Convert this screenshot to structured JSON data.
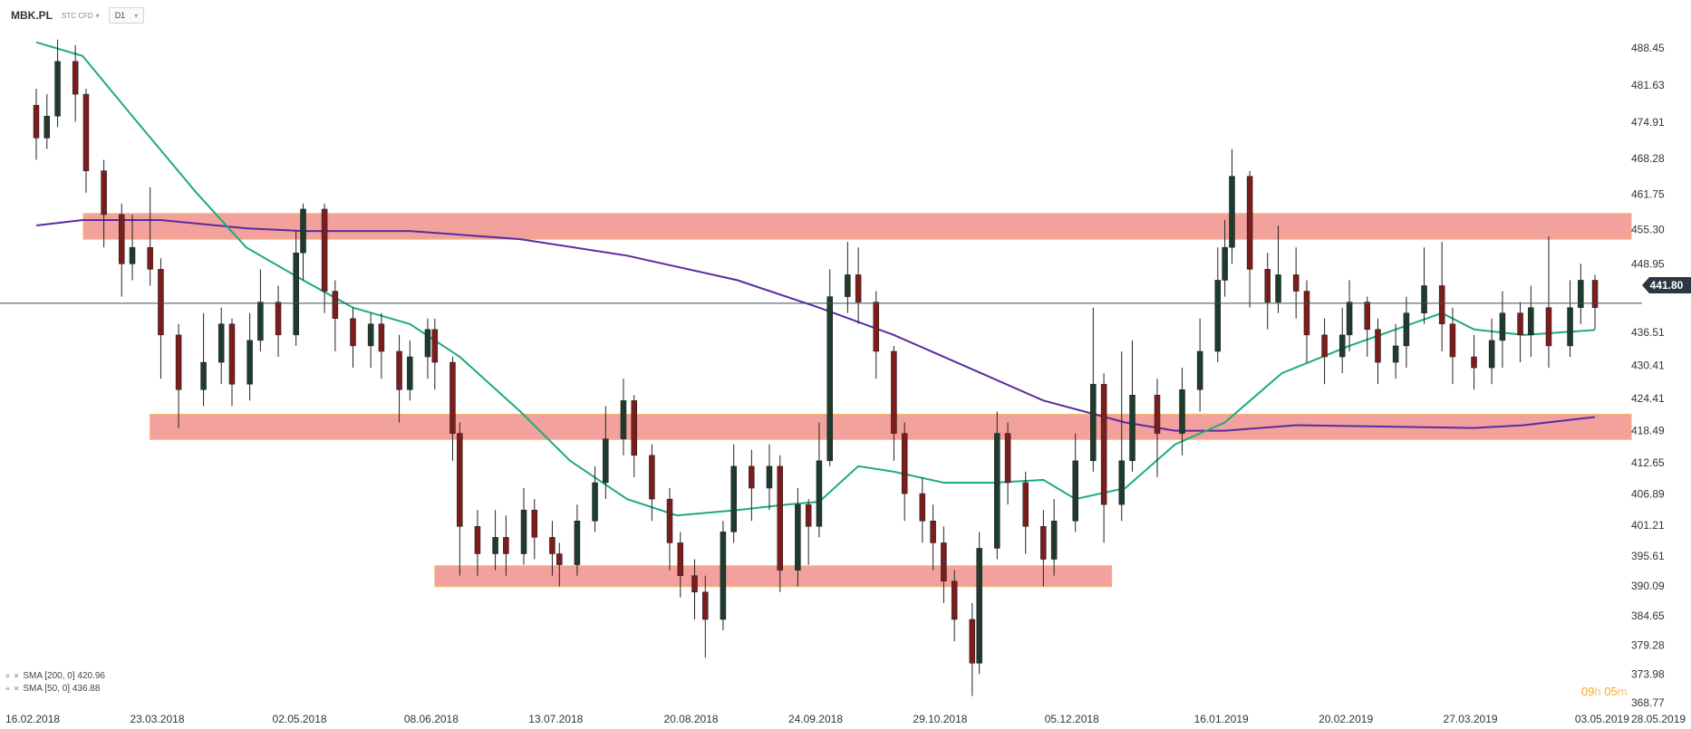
{
  "toolbar": {
    "symbol": "MBK.PL",
    "instrument_type": "STC CFD",
    "timeframe": "D1"
  },
  "current_price": "441.80",
  "timer": {
    "h": "09",
    "h_unit": "h",
    "m": "05",
    "m_unit": "m"
  },
  "legend": [
    {
      "label": "SMA  [200,  0]  420.96"
    },
    {
      "label": "SMA  [50,  0]  436.88"
    }
  ],
  "colors": {
    "up_candle": "#1f3b2e",
    "down_candle": "#7b1d1d",
    "sma50": "#1dab7d",
    "sma200": "#5b2aa0",
    "zone_fill": "#f2a19d",
    "zone_stroke": "#f2b56b",
    "price_line": "#3b4a56"
  },
  "chart_data": {
    "type": "candlestick",
    "y_ticks": [
      "488.45",
      "481.63",
      "474.91",
      "468.28",
      "461.75",
      "455.30",
      "448.95",
      "436.51",
      "430.41",
      "424.41",
      "418.49",
      "412.65",
      "406.89",
      "401.21",
      "395.61",
      "390.09",
      "384.65",
      "379.28",
      "373.98",
      "368.77"
    ],
    "x_ticks": [
      "16.02.2018",
      "23.03.2018",
      "02.05.2018",
      "08.06.2018",
      "13.07.2018",
      "20.08.2018",
      "24.09.2018",
      "29.10.2018",
      "05.12.2018",
      "16.01.2019",
      "20.02.2019",
      "27.03.2019",
      "03.05.2019",
      "28.05.2019"
    ],
    "ylim": [
      368.77,
      488.45
    ],
    "current_price": 441.8,
    "zones": [
      {
        "from": "16.02.2018",
        "to": "30.04.2019",
        "low": 453.5,
        "high": 458.2
      },
      {
        "from": "20.03.2018",
        "to": "30.04.2019",
        "low": 416.9,
        "high": 421.5
      },
      {
        "from": "08.06.2018",
        "to": "05.12.2018",
        "low": 390.0,
        "high": 393.8
      }
    ],
    "sma50": [
      [
        "16.02.2018",
        489.5
      ],
      [
        "01.03.2018",
        487.0
      ],
      [
        "15.03.2018",
        476.0
      ],
      [
        "02.04.2018",
        462.0
      ],
      [
        "16.04.2018",
        452.0
      ],
      [
        "02.05.2018",
        446.0
      ],
      [
        "16.05.2018",
        441.0
      ],
      [
        "01.06.2018",
        438.0
      ],
      [
        "15.06.2018",
        432.0
      ],
      [
        "02.07.2018",
        422.0
      ],
      [
        "16.07.2018",
        413.0
      ],
      [
        "01.08.2018",
        406.0
      ],
      [
        "15.08.2018",
        403.0
      ],
      [
        "01.09.2018",
        404.0
      ],
      [
        "15.09.2018",
        405.0
      ],
      [
        "24.09.2018",
        405.5
      ],
      [
        "05.10.2018",
        412.0
      ],
      [
        "15.10.2018",
        411.0
      ],
      [
        "29.10.2018",
        409.0
      ],
      [
        "12.11.2018",
        409.0
      ],
      [
        "26.11.2018",
        409.5
      ],
      [
        "05.12.2018",
        406.0
      ],
      [
        "19.12.2018",
        408.0
      ],
      [
        "02.01.2019",
        416.0
      ],
      [
        "16.01.2019",
        420.0
      ],
      [
        "01.02.2019",
        429.0
      ],
      [
        "20.02.2019",
        434.0
      ],
      [
        "05.03.2019",
        437.0
      ],
      [
        "18.03.2019",
        440.0
      ],
      [
        "27.03.2019",
        437.0
      ],
      [
        "10.04.2019",
        436.0
      ],
      [
        "30.04.2019",
        436.9
      ]
    ],
    "sma200": [
      [
        "16.02.2018",
        456.0
      ],
      [
        "01.03.2018",
        457.0
      ],
      [
        "23.03.2018",
        457.0
      ],
      [
        "16.04.2018",
        455.5
      ],
      [
        "02.05.2018",
        455.0
      ],
      [
        "01.06.2018",
        455.0
      ],
      [
        "02.07.2018",
        453.5
      ],
      [
        "01.08.2018",
        450.5
      ],
      [
        "01.09.2018",
        446.0
      ],
      [
        "24.09.2018",
        441.0
      ],
      [
        "15.10.2018",
        436.0
      ],
      [
        "05.11.2018",
        430.0
      ],
      [
        "26.11.2018",
        424.0
      ],
      [
        "19.12.2018",
        420.0
      ],
      [
        "02.01.2019",
        418.5
      ],
      [
        "16.01.2019",
        418.5
      ],
      [
        "05.02.2019",
        419.5
      ],
      [
        "27.03.2019",
        419.0
      ],
      [
        "10.04.2019",
        419.5
      ],
      [
        "30.04.2019",
        421.0
      ]
    ],
    "candles": [
      [
        "16.02.2018",
        478,
        472,
        481,
        468
      ],
      [
        "19.02.2018",
        472,
        476,
        480,
        470
      ],
      [
        "22.02.2018",
        476,
        486,
        490,
        474
      ],
      [
        "27.02.2018",
        486,
        480,
        489,
        475
      ],
      [
        "02.03.2018",
        480,
        466,
        481,
        462
      ],
      [
        "07.03.2018",
        466,
        458,
        468,
        452
      ],
      [
        "12.03.2018",
        458,
        449,
        460,
        443
      ],
      [
        "15.03.2018",
        449,
        452,
        458,
        446
      ],
      [
        "20.03.2018",
        452,
        448,
        463,
        445
      ],
      [
        "23.03.2018",
        448,
        436,
        450,
        428
      ],
      [
        "28.03.2018",
        436,
        426,
        438,
        419
      ],
      [
        "04.04.2018",
        426,
        431,
        440,
        423
      ],
      [
        "09.04.2018",
        431,
        438,
        441,
        427
      ],
      [
        "12.04.2018",
        438,
        427,
        439,
        423
      ],
      [
        "17.04.2018",
        427,
        435,
        440,
        424
      ],
      [
        "20.04.2018",
        435,
        442,
        448,
        433
      ],
      [
        "25.04.2018",
        442,
        436,
        445,
        432
      ],
      [
        "30.04.2018",
        436,
        451,
        455,
        434
      ],
      [
        "02.05.2018",
        451,
        459,
        460,
        446
      ],
      [
        "08.05.2018",
        459,
        444,
        460,
        440
      ],
      [
        "11.05.2018",
        444,
        439,
        446,
        433
      ],
      [
        "16.05.2018",
        439,
        434,
        441,
        430
      ],
      [
        "21.05.2018",
        434,
        438,
        440,
        430
      ],
      [
        "24.05.2018",
        438,
        433,
        440,
        428
      ],
      [
        "29.05.2018",
        433,
        426,
        436,
        420
      ],
      [
        "01.06.2018",
        426,
        432,
        435,
        424
      ],
      [
        "06.06.2018",
        432,
        437,
        439,
        428
      ],
      [
        "08.06.2018",
        437,
        431,
        439,
        426
      ],
      [
        "13.06.2018",
        431,
        418,
        432,
        413
      ],
      [
        "15.06.2018",
        418,
        401,
        420,
        392
      ],
      [
        "20.06.2018",
        401,
        396,
        404,
        392
      ],
      [
        "25.06.2018",
        396,
        399,
        404,
        393
      ],
      [
        "28.06.2018",
        399,
        396,
        403,
        392
      ],
      [
        "03.07.2018",
        396,
        404,
        408,
        394
      ],
      [
        "06.07.2018",
        404,
        399,
        406,
        395
      ],
      [
        "11.07.2018",
        399,
        396,
        402,
        392
      ],
      [
        "13.07.2018",
        396,
        394,
        398,
        390
      ],
      [
        "18.07.2018",
        394,
        402,
        405,
        392
      ],
      [
        "23.07.2018",
        402,
        409,
        412,
        400
      ],
      [
        "26.07.2018",
        409,
        417,
        423,
        406
      ],
      [
        "31.07.2018",
        417,
        424,
        428,
        414
      ],
      [
        "03.08.2018",
        424,
        414,
        425,
        410
      ],
      [
        "08.08.2018",
        414,
        406,
        416,
        402
      ],
      [
        "13.08.2018",
        406,
        398,
        408,
        393
      ],
      [
        "16.08.2018",
        398,
        392,
        400,
        388
      ],
      [
        "20.08.2018",
        392,
        389,
        395,
        384
      ],
      [
        "23.08.2018",
        389,
        384,
        392,
        377
      ],
      [
        "28.08.2018",
        384,
        400,
        402,
        382
      ],
      [
        "31.08.2018",
        400,
        412,
        416,
        398
      ],
      [
        "05.09.2018",
        412,
        408,
        415,
        402
      ],
      [
        "10.09.2018",
        408,
        412,
        416,
        404
      ],
      [
        "13.09.2018",
        412,
        393,
        414,
        389
      ],
      [
        "18.09.2018",
        393,
        405,
        408,
        390
      ],
      [
        "21.09.2018",
        405,
        401,
        406,
        394
      ],
      [
        "24.09.2018",
        401,
        413,
        420,
        399
      ],
      [
        "27.09.2018",
        413,
        443,
        448,
        412
      ],
      [
        "02.10.2018",
        443,
        447,
        453,
        440
      ],
      [
        "05.10.2018",
        447,
        442,
        452,
        438
      ],
      [
        "10.10.2018",
        442,
        433,
        444,
        428
      ],
      [
        "15.10.2018",
        433,
        418,
        434,
        413
      ],
      [
        "18.10.2018",
        418,
        407,
        420,
        402
      ],
      [
        "23.10.2018",
        407,
        402,
        410,
        398
      ],
      [
        "26.10.2018",
        402,
        398,
        405,
        393
      ],
      [
        "29.10.2018",
        398,
        391,
        401,
        387
      ],
      [
        "01.11.2018",
        391,
        384,
        393,
        380
      ],
      [
        "06.11.2018",
        384,
        376,
        387,
        370
      ],
      [
        "08.11.2018",
        376,
        397,
        400,
        374
      ],
      [
        "13.11.2018",
        397,
        418,
        422,
        395
      ],
      [
        "16.11.2018",
        418,
        409,
        420,
        405
      ],
      [
        "21.11.2018",
        409,
        401,
        411,
        396
      ],
      [
        "26.11.2018",
        401,
        395,
        404,
        390
      ],
      [
        "29.11.2018",
        395,
        402,
        406,
        392
      ],
      [
        "05.12.2018",
        402,
        413,
        418,
        400
      ],
      [
        "10.12.2018",
        413,
        427,
        441,
        411
      ],
      [
        "13.12.2018",
        427,
        405,
        429,
        398
      ],
      [
        "18.12.2018",
        405,
        413,
        433,
        402
      ],
      [
        "21.12.2018",
        413,
        425,
        435,
        411
      ],
      [
        "28.12.2018",
        425,
        418,
        428,
        410
      ],
      [
        "04.01.2019",
        418,
        426,
        430,
        414
      ],
      [
        "09.01.2019",
        426,
        433,
        439,
        422
      ],
      [
        "14.01.2019",
        433,
        446,
        452,
        431
      ],
      [
        "16.01.2019",
        446,
        452,
        457,
        443
      ],
      [
        "18.01.2019",
        452,
        465,
        470,
        449
      ],
      [
        "23.01.2019",
        465,
        448,
        466,
        441
      ],
      [
        "28.01.2019",
        448,
        442,
        451,
        437
      ],
      [
        "31.01.2019",
        442,
        447,
        456,
        440
      ],
      [
        "05.02.2019",
        447,
        444,
        452,
        439
      ],
      [
        "08.02.2019",
        444,
        436,
        446,
        431
      ],
      [
        "13.02.2019",
        436,
        432,
        439,
        427
      ],
      [
        "18.02.2019",
        432,
        436,
        441,
        429
      ],
      [
        "20.02.2019",
        436,
        442,
        446,
        433
      ],
      [
        "25.02.2019",
        442,
        437,
        443,
        432
      ],
      [
        "28.02.2019",
        437,
        431,
        439,
        427
      ],
      [
        "05.03.2019",
        431,
        434,
        438,
        428
      ],
      [
        "08.03.2019",
        434,
        440,
        443,
        430
      ],
      [
        "13.03.2019",
        440,
        445,
        452,
        438
      ],
      [
        "18.03.2019",
        445,
        438,
        453,
        433
      ],
      [
        "21.03.2019",
        438,
        432,
        441,
        427
      ],
      [
        "27.03.2019",
        432,
        430,
        436,
        426
      ],
      [
        "01.04.2019",
        430,
        435,
        439,
        427
      ],
      [
        "04.04.2019",
        435,
        440,
        444,
        430
      ],
      [
        "09.04.2019",
        440,
        436,
        442,
        431
      ],
      [
        "12.04.2019",
        436,
        441,
        445,
        432
      ],
      [
        "17.04.2019",
        441,
        434,
        454,
        430
      ],
      [
        "23.04.2019",
        434,
        441,
        446,
        432
      ],
      [
        "26.04.2019",
        441,
        446,
        449,
        438
      ],
      [
        "30.04.2019",
        446,
        441,
        447,
        437
      ]
    ]
  }
}
